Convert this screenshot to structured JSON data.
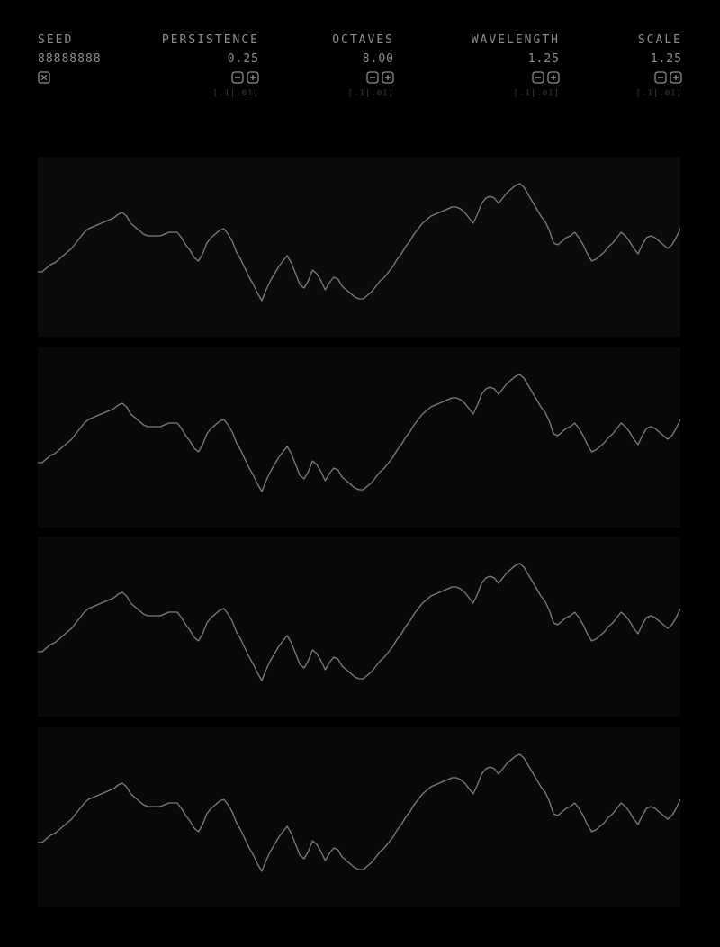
{
  "controls": {
    "seed": {
      "label": "SEED",
      "value": "88888888"
    },
    "persistence": {
      "label": "PERSISTENCE",
      "value": "0.25",
      "step": "[.1|.01]"
    },
    "octaves": {
      "label": "OCTAVES",
      "value": "8.00",
      "step": "[.1|.01]"
    },
    "wavelength": {
      "label": "WAVELENGTH",
      "value": "1.25",
      "step": "[.1|.01]"
    },
    "scale": {
      "label": "SCALE",
      "value": "1.25",
      "step": "[.1|.01]"
    }
  },
  "icons": {
    "randomize": "dice-icon",
    "decrement": "minus-icon",
    "increment": "plus-icon"
  },
  "colors": {
    "background": "#000000",
    "panel": "#090909",
    "text": "#8e8e8e",
    "dim_text": "#3b3b3b",
    "line": "#7d7d7d"
  },
  "chart_data": {
    "type": "line",
    "panels": 4,
    "series": [
      {
        "values": [
          0.36,
          0.36,
          0.38,
          0.4,
          0.41,
          0.43,
          0.45,
          0.47,
          0.49,
          0.52,
          0.55,
          0.58,
          0.6,
          0.61,
          0.62,
          0.63,
          0.64,
          0.65,
          0.66,
          0.68,
          0.69,
          0.67,
          0.63,
          0.61,
          0.59,
          0.57,
          0.56,
          0.56,
          0.56,
          0.56,
          0.57,
          0.58,
          0.58,
          0.58,
          0.55,
          0.51,
          0.48,
          0.44,
          0.42,
          0.46,
          0.52,
          0.55,
          0.57,
          0.59,
          0.6,
          0.57,
          0.53,
          0.47,
          0.43,
          0.38,
          0.33,
          0.29,
          0.24,
          0.2,
          0.26,
          0.31,
          0.35,
          0.39,
          0.42,
          0.45,
          0.41,
          0.35,
          0.29,
          0.27,
          0.31,
          0.37,
          0.35,
          0.31,
          0.26,
          0.3,
          0.33,
          0.32,
          0.28,
          0.26,
          0.24,
          0.22,
          0.21,
          0.21,
          0.23,
          0.25,
          0.28,
          0.31,
          0.33,
          0.36,
          0.39,
          0.43,
          0.46,
          0.5,
          0.53,
          0.57,
          0.6,
          0.63,
          0.65,
          0.67,
          0.68,
          0.69,
          0.7,
          0.71,
          0.72,
          0.72,
          0.71,
          0.69,
          0.66,
          0.63,
          0.68,
          0.74,
          0.77,
          0.78,
          0.77,
          0.74,
          0.77,
          0.8,
          0.82,
          0.84,
          0.85,
          0.83,
          0.79,
          0.75,
          0.71,
          0.67,
          0.64,
          0.59,
          0.52,
          0.51,
          0.53,
          0.55,
          0.56,
          0.58,
          0.55,
          0.51,
          0.46,
          0.42,
          0.43,
          0.45,
          0.47,
          0.5,
          0.52,
          0.55,
          0.58,
          0.56,
          0.53,
          0.49,
          0.46,
          0.51,
          0.55,
          0.56,
          0.55,
          0.53,
          0.51,
          0.49,
          0.51,
          0.55,
          0.6
        ]
      }
    ]
  }
}
